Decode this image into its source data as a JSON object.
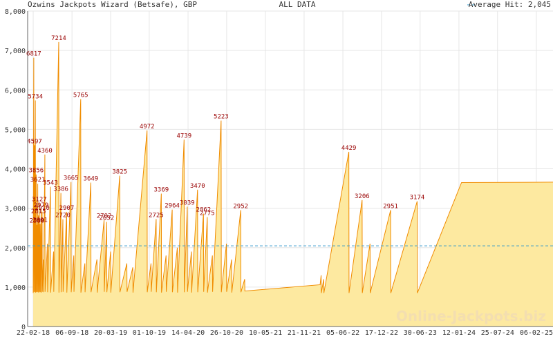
{
  "chart_data": {
    "type": "area",
    "title": "Ozwins Jackpots Wizard (Betsafe), GBP",
    "subtitle": "ALL DATA",
    "watermark": "Online-Jackpots.biz",
    "line_color": "#f08c00",
    "fill_color": "#fde9a0",
    "grid": true,
    "xlim": [
      "2018-01-25",
      "2025-05-01"
    ],
    "ylim": [
      0,
      8000
    ],
    "yticks": [
      0,
      {
        "value": 1000,
        "label": "1,000"
      },
      {
        "value": 2000,
        "label": "2,000"
      },
      {
        "value": 3000,
        "label": "3,000"
      },
      {
        "value": 4000,
        "label": "4,000"
      },
      {
        "value": 5000,
        "label": "5,000"
      },
      {
        "value": 6000,
        "label": "6,000"
      },
      {
        "value": 7000,
        "label": "7,000"
      },
      {
        "value": 8000,
        "label": "8,000"
      }
    ],
    "xticks": [
      {
        "value": "2018-02-22",
        "label": "22-02-18"
      },
      {
        "value": "2018-09-06",
        "label": "06-09-18"
      },
      {
        "value": "2019-03-20",
        "label": "20-03-19"
      },
      {
        "value": "2019-10-01",
        "label": "01-10-19"
      },
      {
        "value": "2020-04-14",
        "label": "14-04-20"
      },
      {
        "value": "2020-10-26",
        "label": "26-10-20"
      },
      {
        "value": "2021-05-10",
        "label": "10-05-21"
      },
      {
        "value": "2021-11-21",
        "label": "21-11-21"
      },
      {
        "value": "2022-06-05",
        "label": "05-06-22"
      },
      {
        "value": "2022-12-17",
        "label": "17-12-22"
      },
      {
        "value": "2023-06-30",
        "label": "30-06-23"
      },
      {
        "value": "2024-01-12",
        "label": "12-01-24"
      },
      {
        "value": "2024-07-25",
        "label": "25-07-24"
      },
      {
        "value": "2025-02-06",
        "label": "06-02-25"
      }
    ],
    "average": {
      "name": "Average Hit: 2,045",
      "value": 2045,
      "color": "#3399cc"
    },
    "x": [
      "2018-02-22",
      "2018-02-25",
      "2018-02-26",
      "2018-03-01",
      "2018-03-02",
      "2018-03-05",
      "2018-03-06",
      "2018-03-09",
      "2018-03-10",
      "2018-03-13",
      "2018-03-14",
      "2018-03-17",
      "2018-03-18",
      "2018-03-21",
      "2018-03-22",
      "2018-03-25",
      "2018-03-26",
      "2018-03-29",
      "2018-03-30",
      "2018-04-03",
      "2018-04-04",
      "2018-04-08",
      "2018-04-09",
      "2018-04-14",
      "2018-04-15",
      "2018-04-22",
      "2018-04-23",
      "2018-05-05",
      "2018-05-06",
      "2018-05-20",
      "2018-05-21",
      "2018-06-05",
      "2018-06-06",
      "2018-07-01",
      "2018-07-02",
      "2018-07-12",
      "2018-07-13",
      "2018-07-22",
      "2018-07-23",
      "2018-08-10",
      "2018-08-11",
      "2018-09-01",
      "2018-09-02",
      "2018-09-15",
      "2018-09-16",
      "2018-10-20",
      "2018-10-21",
      "2018-11-10",
      "2018-11-11",
      "2018-12-10",
      "2018-12-11",
      "2019-01-10",
      "2019-01-11",
      "2019-02-15",
      "2019-02-16",
      "2019-02-28",
      "2019-03-01",
      "2019-03-20",
      "2019-03-21",
      "2019-05-05",
      "2019-05-06",
      "2019-06-10",
      "2019-06-11",
      "2019-07-10",
      "2019-07-11",
      "2019-09-20",
      "2019-09-21",
      "2019-10-10",
      "2019-10-11",
      "2019-11-05",
      "2019-11-06",
      "2019-12-01",
      "2019-12-02",
      "2019-12-25",
      "2019-12-26",
      "2020-01-25",
      "2020-01-26",
      "2020-02-20",
      "2020-02-21",
      "2020-03-25",
      "2020-03-26",
      "2020-04-10",
      "2020-04-11",
      "2020-05-01",
      "2020-05-02",
      "2020-06-01",
      "2020-06-02",
      "2020-07-01",
      "2020-07-02",
      "2020-07-20",
      "2020-07-21",
      "2020-08-15",
      "2020-08-16",
      "2020-09-28",
      "2020-09-29",
      "2020-10-25",
      "2020-10-26",
      "2020-11-20",
      "2020-11-21",
      "2021-01-05",
      "2021-01-06",
      "2021-01-25",
      "2021-01-26",
      "2022-02-10",
      "2022-02-15",
      "2022-02-16",
      "2022-02-28",
      "2022-03-01",
      "2022-07-05",
      "2022-07-06",
      "2022-09-10",
      "2022-09-11",
      "2022-10-20",
      "2022-10-21",
      "2023-02-01",
      "2023-02-02",
      "2023-06-15",
      "2023-06-16",
      "2024-01-25",
      "2025-05-01"
    ],
    "values": [
      850,
      6817,
      870,
      4597,
      880,
      5734,
      860,
      3856,
      870,
      2580,
      880,
      3621,
      870,
      2815,
      860,
      3127,
      880,
      2601,
      870,
      2979,
      860,
      2910,
      880,
      1700,
      870,
      4360,
      880,
      2100,
      870,
      3543,
      860,
      1900,
      880,
      7214,
      860,
      3386,
      870,
      2720,
      880,
      2907,
      860,
      3665,
      870,
      1800,
      880,
      5765,
      860,
      1600,
      870,
      3649,
      870,
      1700,
      860,
      2702,
      880,
      2652,
      870,
      1900,
      860,
      3825,
      870,
      1600,
      880,
      1500,
      860,
      4972,
      870,
      1600,
      880,
      2725,
      870,
      3369,
      860,
      1800,
      880,
      2964,
      870,
      2000,
      860,
      4739,
      870,
      3039,
      880,
      1900,
      860,
      3470,
      870,
      2862,
      880,
      2775,
      860,
      1800,
      880,
      5223,
      870,
      2100,
      880,
      1700,
      860,
      2952,
      870,
      1200,
      900,
      1060,
      1300,
      850,
      1200,
      850,
      4429,
      850,
      3206,
      850,
      2100,
      850,
      2951,
      850,
      3174,
      850,
      3650,
      3660
    ],
    "value_labels": [
      null,
      "6817",
      null,
      "4597",
      null,
      "5734",
      null,
      "3856",
      null,
      "2580",
      null,
      "3621",
      null,
      "2815",
      null,
      "3127",
      null,
      "2601",
      null,
      "2979",
      null,
      "2910",
      null,
      null,
      null,
      "4360",
      null,
      null,
      null,
      "3543",
      null,
      null,
      null,
      "7214",
      null,
      "3386",
      null,
      "2720",
      null,
      "2907",
      null,
      "3665",
      null,
      null,
      null,
      "5765",
      null,
      null,
      null,
      "3649",
      null,
      null,
      null,
      "2702",
      null,
      "2652",
      null,
      null,
      null,
      "3825",
      null,
      null,
      null,
      null,
      null,
      "4972",
      null,
      null,
      null,
      "2725",
      null,
      "3369",
      null,
      null,
      null,
      "2964",
      null,
      null,
      null,
      "4739",
      null,
      "3039",
      null,
      null,
      null,
      "3470",
      null,
      "2862",
      null,
      "2775",
      null,
      null,
      null,
      "5223",
      null,
      null,
      null,
      null,
      null,
      "2952",
      null,
      null,
      null,
      null,
      null,
      null,
      null,
      null,
      "4429",
      null,
      "3206",
      null,
      null,
      null,
      "2951",
      null,
      "3174",
      null,
      null,
      null
    ]
  }
}
